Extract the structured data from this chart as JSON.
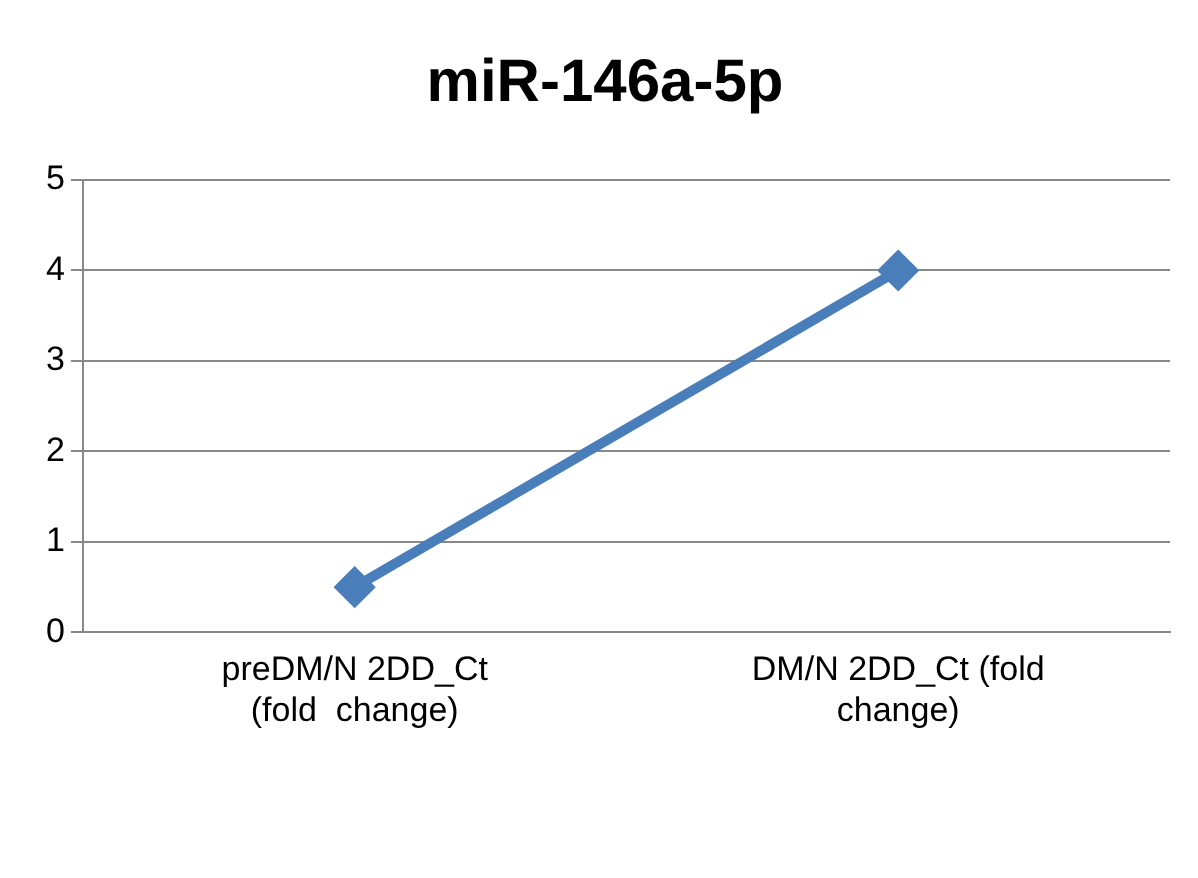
{
  "chart_data": {
    "type": "line",
    "title": "miR-146a-5p",
    "categories": [
      "preDM/N 2DD_Ct (fold  change)",
      "DM/N 2DD_Ct (fold change)"
    ],
    "series": [
      {
        "color": "#4a7ebb",
        "values": [
          0.5,
          4.0
        ]
      }
    ],
    "ylim": [
      0,
      5
    ],
    "yticks": [
      0,
      1,
      2,
      3,
      4,
      5
    ],
    "grid": "y",
    "legend": false,
    "marker": "diamond",
    "line_style": "solid"
  }
}
